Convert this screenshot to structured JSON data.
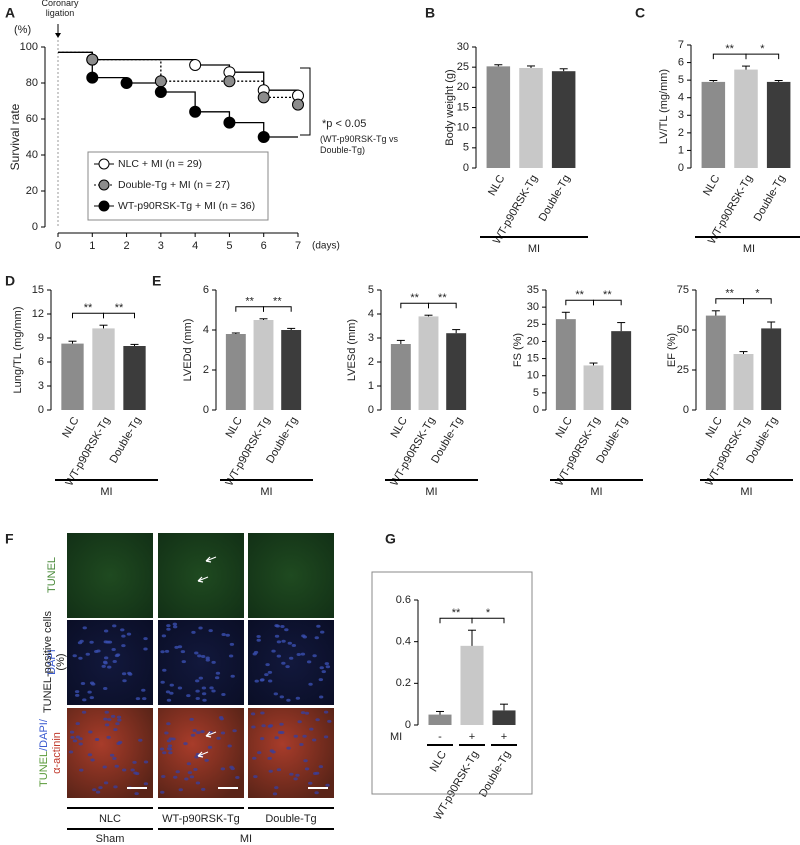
{
  "chart_data": [
    {
      "panel": "A",
      "type": "line",
      "step": true,
      "ylabel": "Survival rate",
      "yunit": "(%)",
      "xlabel": "(days)",
      "annotations": {
        "ligation": "Coronary ligation",
        "p_value": "*p < 0.05",
        "comparison": "(WT-p90RSK-Tg vs Double-Tg)"
      },
      "xlim": [
        0,
        7
      ],
      "xticks": [
        0,
        1,
        2,
        3,
        4,
        5,
        6,
        7
      ],
      "ylim": [
        0,
        100
      ],
      "yticks": [
        0,
        20,
        40,
        60,
        80,
        100
      ],
      "legend": "lower center",
      "series": [
        {
          "name": "NLC + MI (n = 29)",
          "color": "#ffffff",
          "linestyle": "solid",
          "x": [
            0,
            1,
            4,
            5,
            6,
            7
          ],
          "values": [
            97,
            93,
            90,
            86,
            76,
            73
          ]
        },
        {
          "name": "Double-Tg + MI (n = 27)",
          "color": "#8c8c8c",
          "linestyle": "dotted",
          "x": [
            0,
            1,
            3,
            5,
            6,
            7
          ],
          "values": [
            97,
            93,
            81,
            81,
            72,
            68
          ]
        },
        {
          "name": "WT-p90RSK-Tg + MI (n = 36)",
          "color": "#000000",
          "linestyle": "solid",
          "x": [
            0,
            1,
            2,
            3,
            4,
            5,
            6,
            7
          ],
          "values": [
            97,
            83,
            80,
            75,
            64,
            58,
            50,
            50
          ]
        }
      ]
    },
    {
      "panel": "B",
      "type": "bar",
      "ylabel": "Body weight (g)",
      "categories": [
        "NLC",
        "WT-p90RSK-Tg",
        "Double-Tg"
      ],
      "group_label": "MI",
      "values": [
        25.2,
        24.8,
        24.0
      ],
      "errors": [
        0.4,
        0.5,
        0.6
      ],
      "colors": [
        "#8c8c8c",
        "#c8c8c8",
        "#3c3c3c"
      ],
      "ylim": [
        0,
        30
      ],
      "yticks": [
        0,
        5,
        10,
        15,
        20,
        25,
        30
      ]
    },
    {
      "panel": "C",
      "type": "bar",
      "ylabel": "LV/TL (mg/mm)",
      "categories": [
        "NLC",
        "WT-p90RSK-Tg",
        "Double-Tg"
      ],
      "group_label": "MI",
      "values": [
        4.9,
        5.6,
        4.9
      ],
      "errors": [
        0.08,
        0.2,
        0.08
      ],
      "colors": [
        "#8c8c8c",
        "#c8c8c8",
        "#3c3c3c"
      ],
      "significance": [
        "**",
        "*"
      ],
      "ylim": [
        0,
        7
      ],
      "yticks": [
        0,
        1,
        2,
        3,
        4,
        5,
        6,
        7
      ]
    },
    {
      "panel": "D",
      "type": "bar",
      "ylabel": "Lung/TL (mg/mm)",
      "categories": [
        "NLC",
        "WT-p90RSK-Tg",
        "Double-Tg"
      ],
      "group_label": "MI",
      "values": [
        8.3,
        10.2,
        8.0
      ],
      "errors": [
        0.3,
        0.4,
        0.2
      ],
      "colors": [
        "#8c8c8c",
        "#c8c8c8",
        "#3c3c3c"
      ],
      "significance": [
        "**",
        "**"
      ],
      "ylim": [
        0,
        15
      ],
      "yticks": [
        0,
        3,
        6,
        9,
        12,
        15
      ]
    },
    {
      "panel": "E",
      "type": "bar",
      "ylabel": "LVEDd (mm)",
      "categories": [
        "NLC",
        "WT-p90RSK-Tg",
        "Double-Tg"
      ],
      "group_label": "MI",
      "values": [
        3.8,
        4.5,
        4.0
      ],
      "errors": [
        0.05,
        0.06,
        0.08
      ],
      "colors": [
        "#8c8c8c",
        "#c8c8c8",
        "#3c3c3c"
      ],
      "significance": [
        "**",
        "**"
      ],
      "ylim": [
        0,
        6
      ],
      "yticks": [
        0,
        2,
        4,
        6
      ]
    },
    {
      "type": "bar",
      "ylabel": "LVESd (mm)",
      "categories": [
        "NLC",
        "WT-p90RSK-Tg",
        "Double-Tg"
      ],
      "group_label": "MI",
      "values": [
        2.75,
        3.9,
        3.2
      ],
      "errors": [
        0.15,
        0.05,
        0.15
      ],
      "colors": [
        "#8c8c8c",
        "#c8c8c8",
        "#3c3c3c"
      ],
      "significance": [
        "**",
        "**"
      ],
      "ylim": [
        0,
        5
      ],
      "yticks": [
        0,
        1,
        2,
        3,
        4,
        5
      ]
    },
    {
      "type": "bar",
      "ylabel": "FS (%)",
      "categories": [
        "NLC",
        "WT-p90RSK-Tg",
        "Double-Tg"
      ],
      "group_label": "MI",
      "values": [
        26.5,
        13,
        23
      ],
      "errors": [
        2,
        0.7,
        2.5
      ],
      "colors": [
        "#8c8c8c",
        "#c8c8c8",
        "#3c3c3c"
      ],
      "significance": [
        "**",
        "**"
      ],
      "ylim": [
        0,
        35
      ],
      "yticks": [
        0,
        5,
        10,
        15,
        20,
        25,
        30,
        35
      ]
    },
    {
      "type": "bar",
      "ylabel": "EF (%)",
      "categories": [
        "NLC",
        "WT-p90RSK-Tg",
        "Double-Tg"
      ],
      "group_label": "MI",
      "values": [
        59,
        35,
        51
      ],
      "errors": [
        3,
        1.5,
        4
      ],
      "colors": [
        "#8c8c8c",
        "#c8c8c8",
        "#3c3c3c"
      ],
      "significance": [
        "**",
        "*"
      ],
      "ylim": [
        0,
        75
      ],
      "yticks": [
        0,
        25,
        50,
        75
      ]
    },
    {
      "panel": "G",
      "type": "bar",
      "ylabel": "TUNEL-positive cells (%)",
      "categories": [
        "NLC",
        "WT-p90RSK-Tg",
        "Double-Tg"
      ],
      "mi_row": {
        "label": "MI",
        "values": [
          "-",
          "+",
          "+"
        ]
      },
      "values": [
        0.05,
        0.38,
        0.07
      ],
      "errors": [
        0.015,
        0.075,
        0.03
      ],
      "colors": [
        "#8c8c8c",
        "#c8c8c8",
        "#3c3c3c"
      ],
      "significance": [
        "**",
        "*"
      ],
      "ylim": [
        0,
        0.6
      ],
      "yticks": [
        0,
        0.2,
        0.4,
        0.6
      ]
    }
  ],
  "panel_f": {
    "panel": "F",
    "row_labels": [
      "TUNEL",
      "DAPI",
      [
        "TUNEL",
        "/DAPI/",
        "α-actinin"
      ]
    ],
    "column_labels": [
      "NLC",
      "WT-p90RSK-Tg",
      "Double-Tg"
    ],
    "group_labels": [
      "Sham",
      "MI"
    ]
  }
}
